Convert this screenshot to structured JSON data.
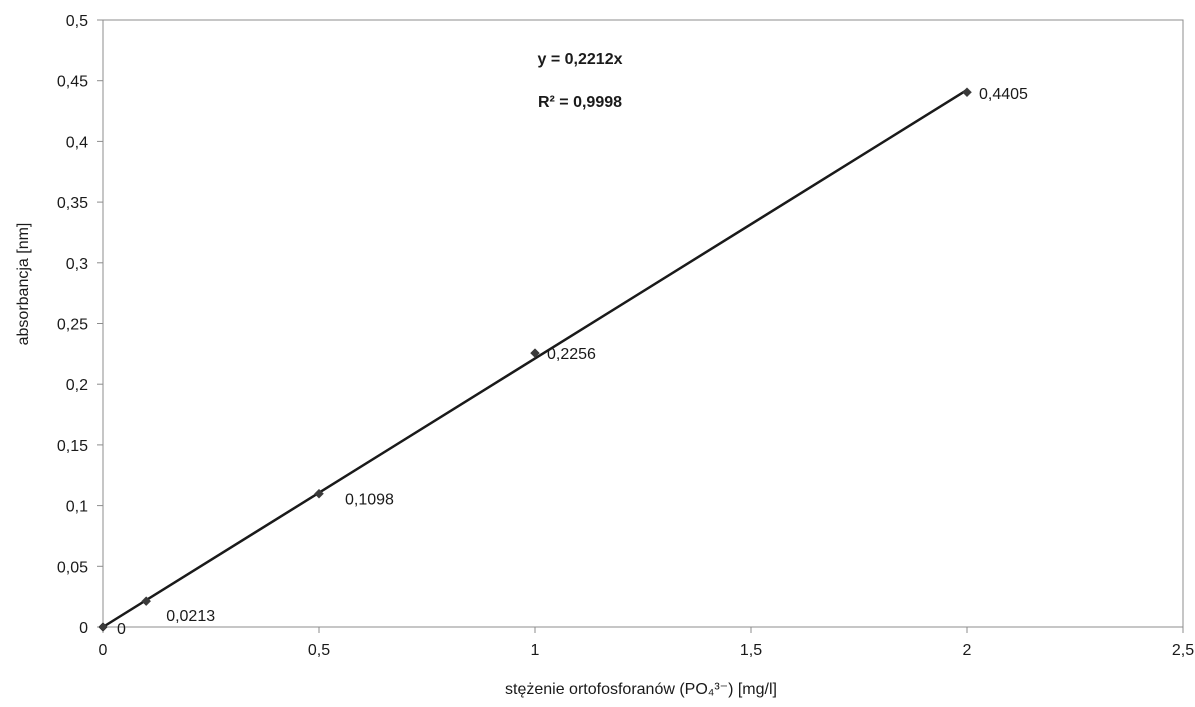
{
  "chart_data": {
    "type": "scatter",
    "xlabel": "stężenie ortofosforanów (PO₄³⁻) [mg/l]",
    "ylabel": "absorbancja [nm]",
    "xlim": [
      0,
      2.5
    ],
    "ylim": [
      0,
      0.5
    ],
    "x_ticks": [
      0,
      0.5,
      1,
      1.5,
      2,
      2.5
    ],
    "x_tick_labels": [
      "0",
      "0,5",
      "1",
      "1,5",
      "2",
      "2,5"
    ],
    "y_ticks": [
      0,
      0.05,
      0.1,
      0.15,
      0.2,
      0.25,
      0.3,
      0.35,
      0.4,
      0.45,
      0.5
    ],
    "y_tick_labels": [
      "0",
      "0,05",
      "0,1",
      "0,15",
      "0,2",
      "0,25",
      "0,3",
      "0,35",
      "0,4",
      "0,45",
      "0,5"
    ],
    "grid": false,
    "legend": "none",
    "series": [
      {
        "x": [
          0,
          0.1,
          0.5,
          1,
          2
        ],
        "y": [
          0,
          0.0213,
          0.1098,
          0.2256,
          0.4405
        ],
        "point_labels": [
          "0",
          "0,0213",
          "0,1098",
          "0,2256",
          "0,4405"
        ],
        "marker": "diamond",
        "color": "#3a3a3a"
      }
    ],
    "trendline": {
      "type": "linear",
      "slope": 0.2212,
      "x_range": [
        0,
        2
      ],
      "color": "#1a1a1a"
    },
    "annotations": {
      "equation": "y = 0,2212x",
      "r_squared": "R² = 0,9998"
    }
  }
}
